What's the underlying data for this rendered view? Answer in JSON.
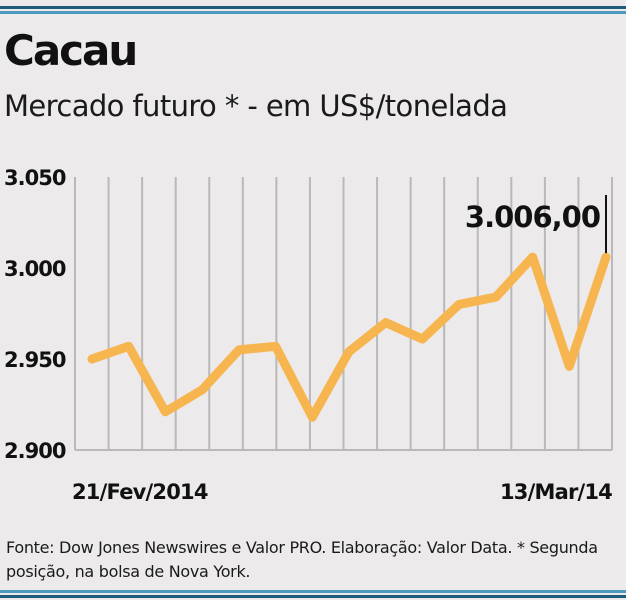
{
  "header": {
    "title": "Cacau",
    "subtitle": "Mercado futuro * - em US$/tonelada"
  },
  "footer": {
    "source_note": "Fonte: Dow Jones Newswires e Valor PRO. Elaboração: Valor Data. * Segunda posição, na bolsa de Nova York."
  },
  "colors": {
    "line": "#f7b550",
    "background": "#eceaea",
    "grid": "#b9b9b9",
    "accent_rule_dark": "#1e5d7a",
    "accent_rule_light": "#4c9bbf"
  },
  "chart_data": {
    "type": "line",
    "title": "Cacau",
    "subtitle": "Mercado futuro * - em US$/tonelada",
    "x_tick_labels": {
      "first": "21/Fev/2014",
      "last": "13/Mar/14"
    },
    "y_ticks": [
      3050,
      3000,
      2950,
      2900
    ],
    "y_tick_labels": [
      "3.050",
      "3.000",
      "2.950",
      "2.900"
    ],
    "ylim": [
      2900,
      3050
    ],
    "grid": "vertical",
    "series": [
      {
        "values": [
          2950,
          2957,
          2921,
          2933,
          2955,
          2957,
          2918,
          2954,
          2970,
          2961,
          2980,
          2984,
          3006,
          2946,
          3006
        ]
      }
    ],
    "annotation": {
      "text": "3.006,00",
      "point_index": 14
    }
  }
}
